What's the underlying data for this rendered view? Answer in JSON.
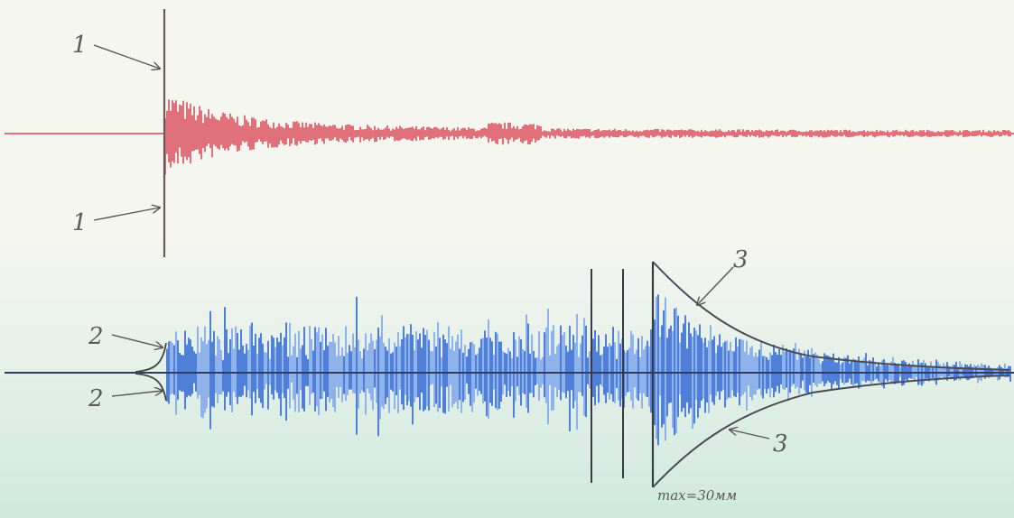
{
  "colors": {
    "paper_top": "#f6f6f1",
    "paper_bottom": "#cfe9de",
    "red_trace": "#e0707a",
    "blue_trace": "#4f7fd6",
    "blue_light": "#8fb2ea",
    "ink": "#555555",
    "envelope": "#4a4a55"
  },
  "labels": {
    "red_upper": "1",
    "red_lower": "1",
    "blue_upper": "2",
    "blue_lower": "2",
    "envelope_upper": "3",
    "envelope_lower": "3",
    "max_note": "max=30мм"
  },
  "icons": [
    "arrow-icon"
  ]
}
